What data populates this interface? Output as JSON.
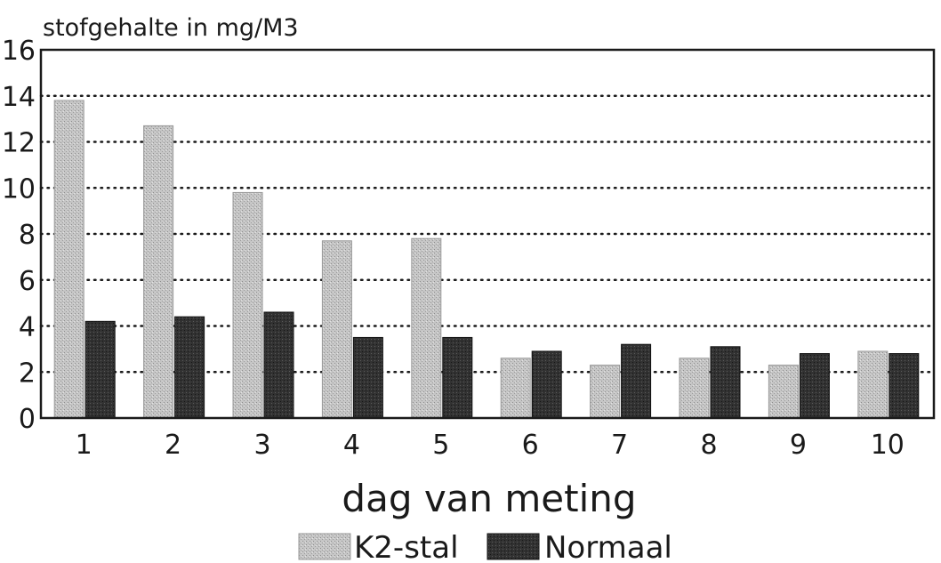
{
  "chart_data": {
    "type": "bar",
    "title": "",
    "ylabel": "stofgehalte in mg/M3",
    "xlabel": "dag van meting",
    "categories": [
      "1",
      "2",
      "3",
      "4",
      "5",
      "6",
      "7",
      "8",
      "9",
      "10"
    ],
    "yticks": [
      "0",
      "2",
      "4",
      "6",
      "8",
      "10",
      "12",
      "14",
      "16"
    ],
    "ylim": [
      0,
      16
    ],
    "grid": "horizontal dotted",
    "legend_position": "bottom-center",
    "series": [
      {
        "name": "K2-stal",
        "color": "#b8b8b8",
        "values": [
          13.8,
          12.7,
          9.8,
          7.7,
          7.8,
          2.6,
          2.3,
          2.6,
          2.3,
          2.9
        ]
      },
      {
        "name": "Normaal",
        "color": "#2e2e2e",
        "values": [
          4.2,
          4.4,
          4.6,
          3.5,
          3.5,
          2.9,
          3.2,
          3.1,
          2.8,
          2.8
        ]
      }
    ]
  }
}
